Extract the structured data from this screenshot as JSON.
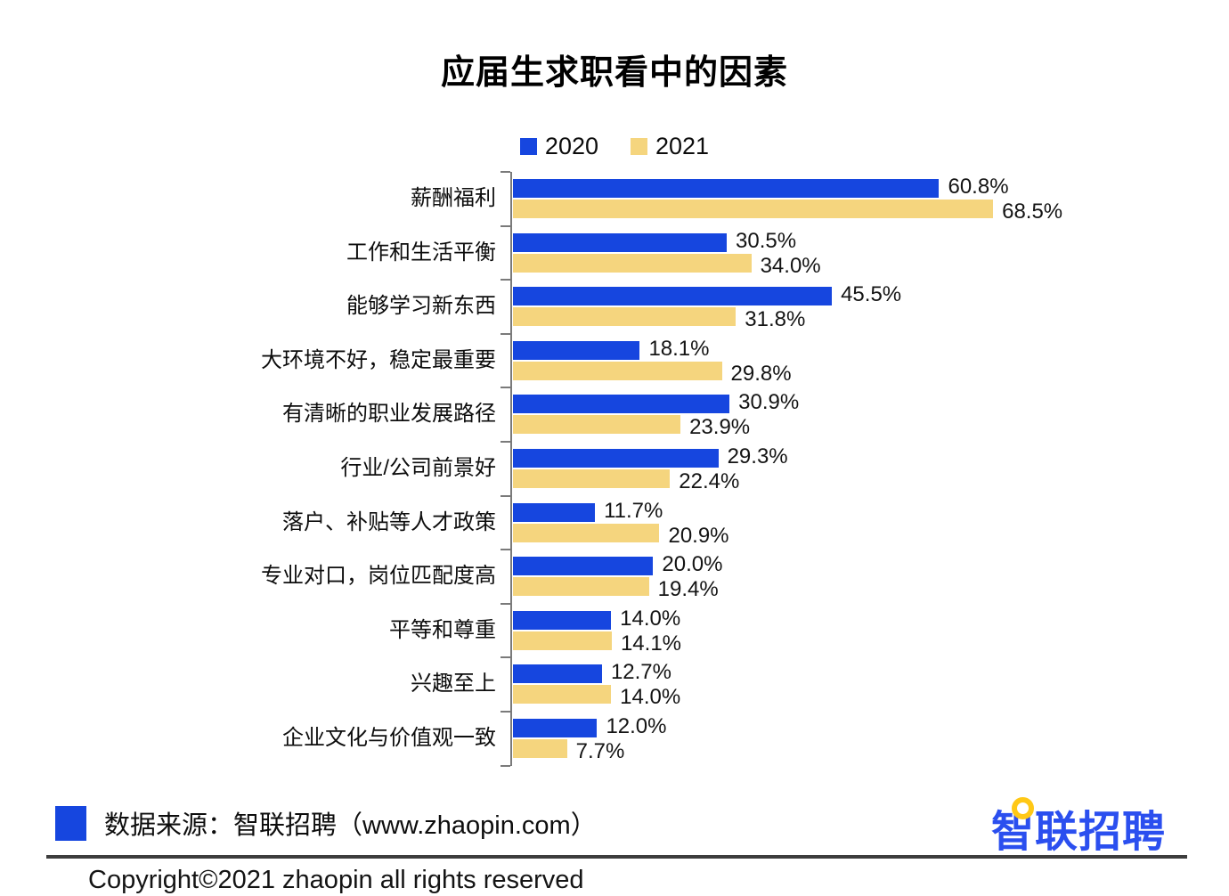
{
  "chart_data": {
    "type": "bar",
    "orientation": "horizontal",
    "title": "应届生求职看中的因素",
    "categories": [
      "薪酬福利",
      "工作和生活平衡",
      "能够学习新东西",
      "大环境不好，稳定最重要",
      "有清晰的职业发展路径",
      "行业/公司前景好",
      "落户、补贴等人才政策",
      "专业对口，岗位匹配度高",
      "平等和尊重",
      "兴趣至上",
      "企业文化与价值观一致"
    ],
    "series": [
      {
        "name": "2020",
        "color": "#1646DF",
        "values": [
          60.8,
          30.5,
          45.5,
          18.1,
          30.9,
          29.3,
          11.7,
          20.0,
          14.0,
          12.7,
          12.0
        ]
      },
      {
        "name": "2021",
        "color": "#F5D57E",
        "values": [
          68.5,
          34.0,
          31.8,
          29.8,
          23.9,
          22.4,
          20.9,
          19.4,
          14.1,
          14.0,
          7.7
        ]
      }
    ],
    "value_suffix": "%",
    "xlim": [
      0,
      100
    ],
    "grid": false,
    "legend_position": "top",
    "axis_color": "#7A7A7A"
  },
  "footer": {
    "source_label": "数据来源：智联招聘（www.zhaopin.com）",
    "source_swatch_color": "#1646DF",
    "logo": {
      "first_char": "智",
      "rest": "联招聘",
      "color": "#2B4FEF",
      "ring_color": "#FFC816"
    },
    "copyright": "Copyright©2021 zhaopin all rights reserved"
  }
}
